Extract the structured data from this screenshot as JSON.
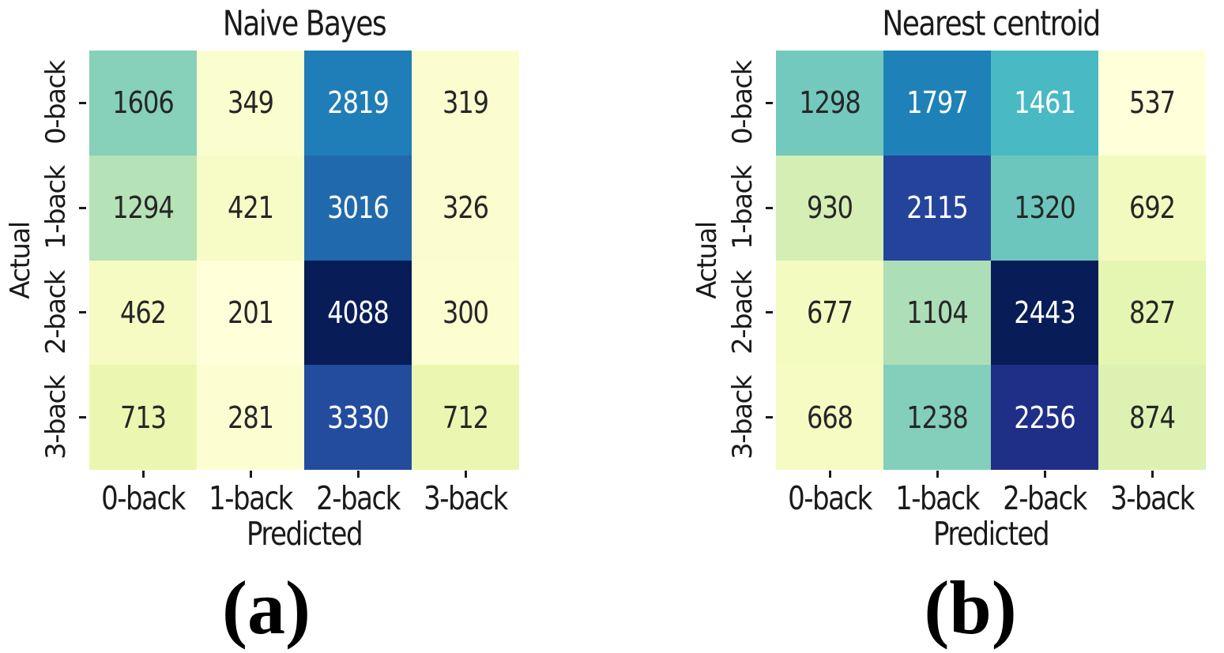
{
  "style": {
    "background": "#ffffff",
    "label_color": "#1a1a1a",
    "annot_dark": "#262626",
    "annot_light": "#ffffff",
    "colormap": "YlGnBu"
  },
  "chart_data": [
    {
      "type": "heatmap",
      "title": "Naive Bayes",
      "xlabel": "Predicted",
      "ylabel": "Actual",
      "caption": "(a)",
      "x_categories": [
        "0-back",
        "1-back",
        "2-back",
        "3-back"
      ],
      "y_categories": [
        "0-back",
        "1-back",
        "2-back",
        "3-back"
      ],
      "values": [
        [
          1606,
          349,
          2819,
          319
        ],
        [
          1294,
          421,
          3016,
          326
        ],
        [
          462,
          201,
          4088,
          300
        ],
        [
          713,
          281,
          3330,
          712
        ]
      ],
      "cell_colors": [
        [
          "#87d0ba",
          "#fafdcd",
          "#1f7db7",
          "#fbfdcf"
        ],
        [
          "#b5e2b6",
          "#f7fcc7",
          "#2169ad",
          "#fbfdcf"
        ],
        [
          "#f5fbc3",
          "#ffffd9",
          "#081d58",
          "#fcfed0"
        ],
        [
          "#ebf7b1",
          "#fcfed2",
          "#234c9f",
          "#ebf7b1"
        ]
      ]
    },
    {
      "type": "heatmap",
      "title": "Nearest centroid",
      "xlabel": "Predicted",
      "ylabel": "Actual",
      "caption": "(b)",
      "x_categories": [
        "0-back",
        "1-back",
        "2-back",
        "3-back"
      ],
      "y_categories": [
        "0-back",
        "1-back",
        "2-back",
        "3-back"
      ],
      "values": [
        [
          1298,
          1797,
          1461,
          537
        ],
        [
          930,
          2115,
          1320,
          692
        ],
        [
          677,
          1104,
          2443,
          827
        ],
        [
          668,
          1238,
          2256,
          874
        ]
      ],
      "cell_colors": [
        [
          "#73c9bd",
          "#1e82b9",
          "#49b9c3",
          "#ffffd9"
        ],
        [
          "#d4eeb3",
          "#24449c",
          "#6dc6be",
          "#f3fabf"
        ],
        [
          "#f4fbc1",
          "#acdeb7",
          "#081d58",
          "#e5f5b2"
        ],
        [
          "#f5fbc3",
          "#83cfbb",
          "#1f2f87",
          "#ddf2b2"
        ]
      ]
    }
  ]
}
